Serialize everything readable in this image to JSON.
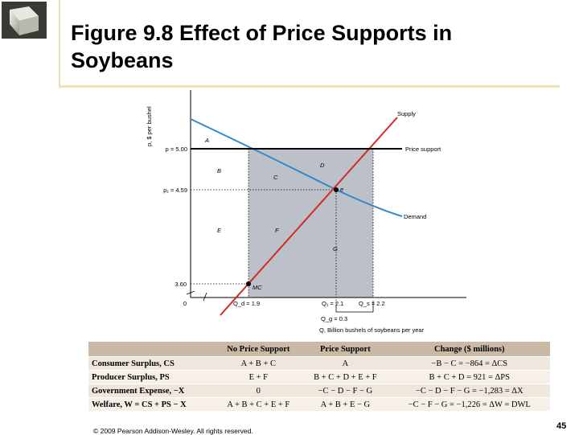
{
  "slide": {
    "title_line1": "Figure 9.8 Effect of Price Supports in",
    "title_line2": "Soybeans",
    "footer": "© 2009 Pearson Addison-Wesley. All rights reserved.",
    "page_number": "45"
  },
  "colors": {
    "supply_line": "#d42a22",
    "demand_line": "#3388cc",
    "shaded_region": "#bcc0c8",
    "table_header": "#c9b9a5",
    "table_row": "#efe7dc",
    "title_rule": "#ece3b0"
  },
  "diagram": {
    "y_axis_label": "p, $ per bushel",
    "x_axis_label": "Q, Billion bushels of soybeans per year",
    "supply_label": "Supply",
    "demand_label": "Demand",
    "price_support_label": "Price support",
    "y_ticks": {
      "support": "p = 5.00",
      "equilibrium": "p₁ = 4.59",
      "mc": "3.60",
      "origin": "0"
    },
    "x_ticks": {
      "qd": "Q_d = 1.9",
      "q1": "Q₁ = 2.1",
      "qs": "Q_s = 2.2",
      "qg": "Q_g = 0.3"
    },
    "areas": [
      "A",
      "B",
      "C",
      "D",
      "E",
      "F",
      "G"
    ],
    "points": {
      "equilibrium": "e",
      "mc": "MC"
    }
  },
  "table": {
    "headers": [
      "",
      "No Price Support",
      "Price Support",
      "Change ($ millions)"
    ],
    "rows": [
      [
        "Consumer Surplus, CS",
        "A + B + C",
        "A",
        "−B − C = −864 = ΔCS"
      ],
      [
        "Producer Surplus, PS",
        "E + F",
        "B + C + D + E + F",
        "B + C + D = 921 = ΔPS"
      ],
      [
        "Government Expense, −X",
        "0",
        "−C − D − F − G",
        "−C − D − F − G = −1,283 = ΔX"
      ],
      [
        "Welfare, W = CS + PS − X",
        "A + B + C + E + F",
        "A + B + E − G",
        "−C − F − G = −1,226 = ΔW = DWL"
      ]
    ]
  }
}
